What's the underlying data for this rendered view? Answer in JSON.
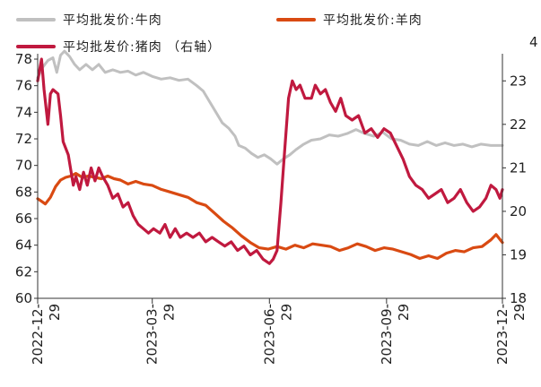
{
  "chart_data": {
    "type": "line",
    "title": "",
    "xlabel": "",
    "ylabel": "",
    "x_ticks": [
      {
        "label": "2022-12-29",
        "date": "2022-12-29"
      },
      {
        "label": "2023-03-29",
        "date": "2023-03-29"
      },
      {
        "label": "2023-06-29",
        "date": "2023-06-29"
      },
      {
        "label": "2023-09-29",
        "date": "2023-09-29"
      },
      {
        "label": "2023-12-29",
        "date": "2023-12-29"
      }
    ],
    "xlim": [
      "2022-12-29",
      "2023-12-29"
    ],
    "ylim_left": [
      60,
      78
    ],
    "yticks_left": [
      "60",
      "62",
      "64",
      "66",
      "68",
      "70",
      "72",
      "74",
      "76",
      "78"
    ],
    "ylim_right": [
      18,
      23.5
    ],
    "yticks_right": [
      "18",
      "19",
      "20",
      "21",
      "22",
      "23"
    ],
    "legend_placement": "top",
    "grid": false,
    "series": [
      {
        "name": "平均批发价:牛肉",
        "axis": "left",
        "color": "#c0c0c0",
        "points": [
          [
            "2022-12-29",
            76.6
          ],
          [
            "2023-01-02",
            77.4
          ],
          [
            "2023-01-06",
            77.9
          ],
          [
            "2023-01-10",
            78.1
          ],
          [
            "2023-01-13",
            77.0
          ],
          [
            "2023-01-16",
            78.3
          ],
          [
            "2023-01-19",
            78.6
          ],
          [
            "2023-01-23",
            78.2
          ],
          [
            "2023-01-27",
            77.6
          ],
          [
            "2023-01-31",
            77.2
          ],
          [
            "2023-02-05",
            77.6
          ],
          [
            "2023-02-10",
            77.2
          ],
          [
            "2023-02-15",
            77.6
          ],
          [
            "2023-02-20",
            77.0
          ],
          [
            "2023-02-26",
            77.2
          ],
          [
            "2023-03-04",
            77.0
          ],
          [
            "2023-03-10",
            77.1
          ],
          [
            "2023-03-16",
            76.8
          ],
          [
            "2023-03-22",
            77.0
          ],
          [
            "2023-03-29",
            76.7
          ],
          [
            "2023-04-05",
            76.5
          ],
          [
            "2023-04-12",
            76.6
          ],
          [
            "2023-04-19",
            76.4
          ],
          [
            "2023-04-26",
            76.5
          ],
          [
            "2023-05-03",
            76.0
          ],
          [
            "2023-05-08",
            75.6
          ],
          [
            "2023-05-13",
            74.8
          ],
          [
            "2023-05-18",
            74.0
          ],
          [
            "2023-05-23",
            73.2
          ],
          [
            "2023-05-28",
            72.8
          ],
          [
            "2023-06-02",
            72.2
          ],
          [
            "2023-06-05",
            71.5
          ],
          [
            "2023-06-10",
            71.3
          ],
          [
            "2023-06-15",
            70.9
          ],
          [
            "2023-06-20",
            70.6
          ],
          [
            "2023-06-25",
            70.8
          ],
          [
            "2023-06-30",
            70.5
          ],
          [
            "2023-07-05",
            70.1
          ],
          [
            "2023-07-10",
            70.5
          ],
          [
            "2023-07-15",
            70.8
          ],
          [
            "2023-07-20",
            71.2
          ],
          [
            "2023-07-26",
            71.6
          ],
          [
            "2023-08-01",
            71.9
          ],
          [
            "2023-08-08",
            72.0
          ],
          [
            "2023-08-15",
            72.3
          ],
          [
            "2023-08-22",
            72.2
          ],
          [
            "2023-08-29",
            72.4
          ],
          [
            "2023-09-05",
            72.7
          ],
          [
            "2023-09-12",
            72.4
          ],
          [
            "2023-09-19",
            72.2
          ],
          [
            "2023-09-26",
            72.5
          ],
          [
            "2023-10-03",
            72.0
          ],
          [
            "2023-10-10",
            71.9
          ],
          [
            "2023-10-17",
            71.6
          ],
          [
            "2023-10-24",
            71.5
          ],
          [
            "2023-10-31",
            71.8
          ],
          [
            "2023-11-07",
            71.5
          ],
          [
            "2023-11-14",
            71.7
          ],
          [
            "2023-11-21",
            71.5
          ],
          [
            "2023-11-28",
            71.6
          ],
          [
            "2023-12-05",
            71.4
          ],
          [
            "2023-12-12",
            71.6
          ],
          [
            "2023-12-20",
            71.5
          ],
          [
            "2023-12-29",
            71.5
          ]
        ]
      },
      {
        "name": "平均批发价:羊肉",
        "axis": "left",
        "color": "#d94a12",
        "points": [
          [
            "2022-12-29",
            67.5
          ],
          [
            "2023-01-01",
            67.3
          ],
          [
            "2023-01-04",
            67.1
          ],
          [
            "2023-01-08",
            67.6
          ],
          [
            "2023-01-12",
            68.4
          ],
          [
            "2023-01-16",
            68.9
          ],
          [
            "2023-01-20",
            69.1
          ],
          [
            "2023-01-24",
            69.2
          ],
          [
            "2023-01-28",
            69.4
          ],
          [
            "2023-02-02",
            69.1
          ],
          [
            "2023-02-07",
            69.2
          ],
          [
            "2023-02-12",
            69.1
          ],
          [
            "2023-02-17",
            69.0
          ],
          [
            "2023-02-22",
            69.2
          ],
          [
            "2023-02-27",
            69.0
          ],
          [
            "2023-03-04",
            68.9
          ],
          [
            "2023-03-10",
            68.6
          ],
          [
            "2023-03-16",
            68.8
          ],
          [
            "2023-03-22",
            68.6
          ],
          [
            "2023-03-29",
            68.5
          ],
          [
            "2023-04-05",
            68.2
          ],
          [
            "2023-04-12",
            68.0
          ],
          [
            "2023-04-19",
            67.8
          ],
          [
            "2023-04-26",
            67.6
          ],
          [
            "2023-05-03",
            67.2
          ],
          [
            "2023-05-10",
            67.0
          ],
          [
            "2023-05-17",
            66.4
          ],
          [
            "2023-05-24",
            65.8
          ],
          [
            "2023-05-31",
            65.3
          ],
          [
            "2023-06-07",
            64.7
          ],
          [
            "2023-06-14",
            64.2
          ],
          [
            "2023-06-21",
            63.8
          ],
          [
            "2023-06-28",
            63.7
          ],
          [
            "2023-07-05",
            63.9
          ],
          [
            "2023-07-12",
            63.7
          ],
          [
            "2023-07-19",
            64.0
          ],
          [
            "2023-07-26",
            63.8
          ],
          [
            "2023-08-02",
            64.1
          ],
          [
            "2023-08-09",
            64.0
          ],
          [
            "2023-08-16",
            63.9
          ],
          [
            "2023-08-23",
            63.6
          ],
          [
            "2023-08-30",
            63.8
          ],
          [
            "2023-09-06",
            64.1
          ],
          [
            "2023-09-13",
            63.9
          ],
          [
            "2023-09-20",
            63.6
          ],
          [
            "2023-09-27",
            63.8
          ],
          [
            "2023-10-04",
            63.7
          ],
          [
            "2023-10-11",
            63.5
          ],
          [
            "2023-10-18",
            63.3
          ],
          [
            "2023-10-25",
            63.0
          ],
          [
            "2023-11-01",
            63.2
          ],
          [
            "2023-11-08",
            63.0
          ],
          [
            "2023-11-15",
            63.4
          ],
          [
            "2023-11-22",
            63.6
          ],
          [
            "2023-11-29",
            63.5
          ],
          [
            "2023-12-06",
            63.8
          ],
          [
            "2023-12-13",
            63.9
          ],
          [
            "2023-12-20",
            64.4
          ],
          [
            "2023-12-24",
            64.8
          ],
          [
            "2023-12-29",
            64.2
          ]
        ]
      },
      {
        "name": "平均批发价:猪肉 （右轴）",
        "axis": "right",
        "color": "#c0193f",
        "points": [
          [
            "2022-12-29",
            23.0
          ],
          [
            "2023-01-01",
            23.5
          ],
          [
            "2023-01-03",
            22.8
          ],
          [
            "2023-01-06",
            22.0
          ],
          [
            "2023-01-08",
            22.7
          ],
          [
            "2023-01-10",
            22.8
          ],
          [
            "2023-01-14",
            22.7
          ],
          [
            "2023-01-16",
            22.2
          ],
          [
            "2023-01-18",
            21.6
          ],
          [
            "2023-01-22",
            21.3
          ],
          [
            "2023-01-26",
            20.6
          ],
          [
            "2023-01-28",
            20.8
          ],
          [
            "2023-01-31",
            20.5
          ],
          [
            "2023-02-03",
            20.9
          ],
          [
            "2023-02-06",
            20.6
          ],
          [
            "2023-02-09",
            21.0
          ],
          [
            "2023-02-12",
            20.7
          ],
          [
            "2023-02-15",
            21.0
          ],
          [
            "2023-02-18",
            20.8
          ],
          [
            "2023-02-22",
            20.6
          ],
          [
            "2023-02-26",
            20.3
          ],
          [
            "2023-03-02",
            20.4
          ],
          [
            "2023-03-06",
            20.1
          ],
          [
            "2023-03-10",
            20.2
          ],
          [
            "2023-03-14",
            19.9
          ],
          [
            "2023-03-18",
            19.7
          ],
          [
            "2023-03-22",
            19.6
          ],
          [
            "2023-03-26",
            19.5
          ],
          [
            "2023-03-30",
            19.6
          ],
          [
            "2023-04-04",
            19.5
          ],
          [
            "2023-04-08",
            19.7
          ],
          [
            "2023-04-12",
            19.4
          ],
          [
            "2023-04-16",
            19.6
          ],
          [
            "2023-04-20",
            19.4
          ],
          [
            "2023-04-25",
            19.5
          ],
          [
            "2023-04-30",
            19.4
          ],
          [
            "2023-05-05",
            19.5
          ],
          [
            "2023-05-10",
            19.3
          ],
          [
            "2023-05-15",
            19.4
          ],
          [
            "2023-05-20",
            19.3
          ],
          [
            "2023-05-25",
            19.2
          ],
          [
            "2023-05-30",
            19.3
          ],
          [
            "2023-06-04",
            19.1
          ],
          [
            "2023-06-09",
            19.2
          ],
          [
            "2023-06-14",
            19.0
          ],
          [
            "2023-06-19",
            19.1
          ],
          [
            "2023-06-24",
            18.9
          ],
          [
            "2023-06-29",
            18.8
          ],
          [
            "2023-07-02",
            18.9
          ],
          [
            "2023-07-05",
            19.1
          ],
          [
            "2023-07-08",
            20.2
          ],
          [
            "2023-07-11",
            21.4
          ],
          [
            "2023-07-14",
            22.6
          ],
          [
            "2023-07-17",
            23.0
          ],
          [
            "2023-07-20",
            22.8
          ],
          [
            "2023-07-23",
            22.9
          ],
          [
            "2023-07-27",
            22.6
          ],
          [
            "2023-08-01",
            22.6
          ],
          [
            "2023-08-04",
            22.9
          ],
          [
            "2023-08-08",
            22.7
          ],
          [
            "2023-08-12",
            22.8
          ],
          [
            "2023-08-16",
            22.5
          ],
          [
            "2023-08-20",
            22.3
          ],
          [
            "2023-08-24",
            22.6
          ],
          [
            "2023-08-28",
            22.2
          ],
          [
            "2023-09-02",
            22.1
          ],
          [
            "2023-09-07",
            22.2
          ],
          [
            "2023-09-12",
            21.8
          ],
          [
            "2023-09-17",
            21.9
          ],
          [
            "2023-09-22",
            21.7
          ],
          [
            "2023-09-27",
            21.9
          ],
          [
            "2023-10-02",
            21.8
          ],
          [
            "2023-10-07",
            21.5
          ],
          [
            "2023-10-12",
            21.2
          ],
          [
            "2023-10-17",
            20.8
          ],
          [
            "2023-10-22",
            20.6
          ],
          [
            "2023-10-27",
            20.5
          ],
          [
            "2023-11-01",
            20.3
          ],
          [
            "2023-11-06",
            20.4
          ],
          [
            "2023-11-11",
            20.5
          ],
          [
            "2023-11-16",
            20.2
          ],
          [
            "2023-11-21",
            20.3
          ],
          [
            "2023-11-26",
            20.5
          ],
          [
            "2023-12-01",
            20.2
          ],
          [
            "2023-12-06",
            20.0
          ],
          [
            "2023-12-11",
            20.1
          ],
          [
            "2023-12-16",
            20.3
          ],
          [
            "2023-12-20",
            20.6
          ],
          [
            "2023-12-24",
            20.5
          ],
          [
            "2023-12-27",
            20.3
          ],
          [
            "2023-12-29",
            20.5
          ]
        ]
      }
    ],
    "right_axis_top_label": "4"
  }
}
